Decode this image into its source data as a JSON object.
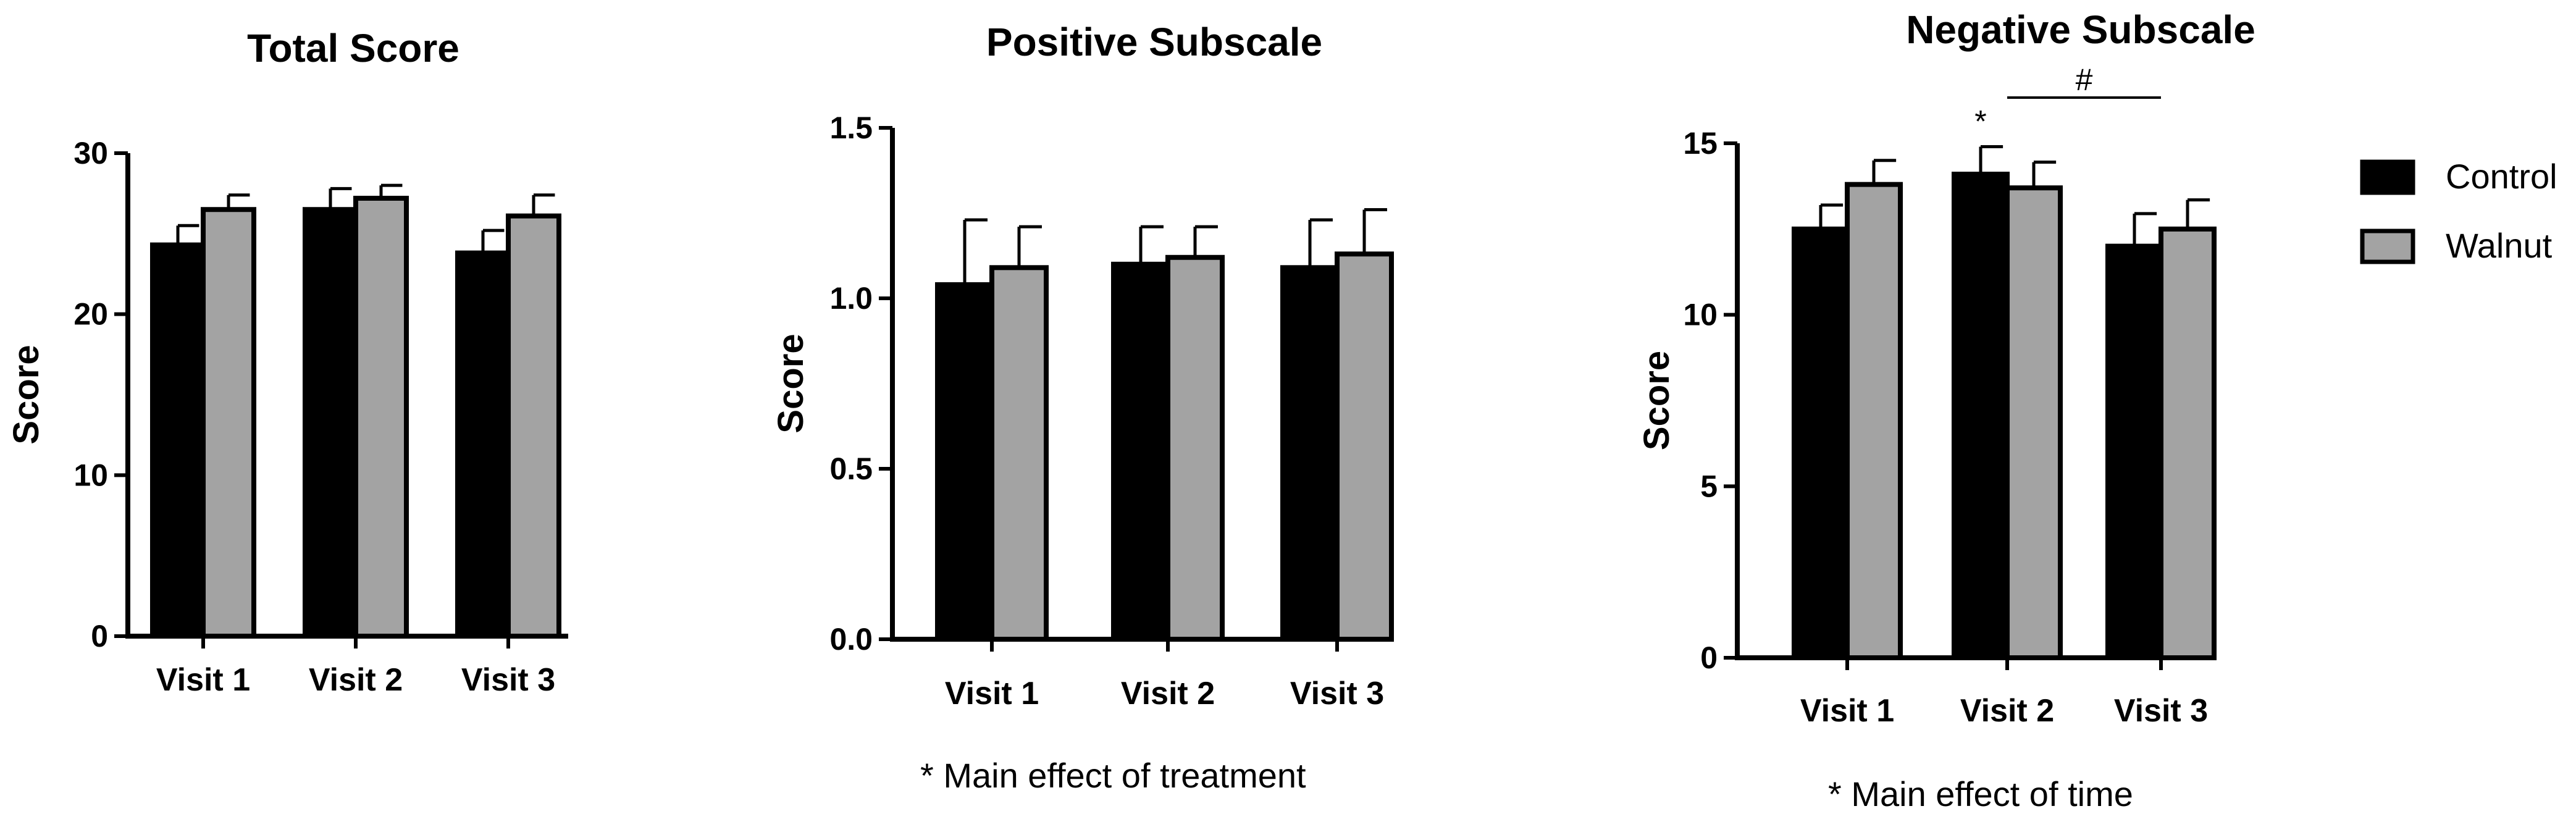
{
  "legend": {
    "entries": [
      {
        "label": "Control",
        "color": "#000000"
      },
      {
        "label": "Walnut",
        "color": "#a3a3a3"
      }
    ]
  },
  "chart_data": [
    {
      "type": "bar",
      "title": "Total Score",
      "ylabel": "Score",
      "xlabel": "",
      "categories": [
        "Visit 1",
        "Visit 2",
        "Visit 3"
      ],
      "ylim": [
        0,
        30
      ],
      "yticks": [
        0,
        10,
        20,
        30
      ],
      "series": [
        {
          "name": "Control",
          "values": [
            24.3,
            26.5,
            23.8
          ],
          "errors": [
            1.2,
            1.3,
            1.4
          ]
        },
        {
          "name": "Walnut",
          "values": [
            26.5,
            27.2,
            26.1
          ],
          "errors": [
            0.9,
            0.8,
            1.3
          ]
        }
      ],
      "annotations": [],
      "note": ""
    },
    {
      "type": "bar",
      "title": "Positive Subscale",
      "ylabel": "Score",
      "xlabel": "",
      "categories": [
        "Visit 1",
        "Visit 2",
        "Visit 3"
      ],
      "ylim": [
        0,
        1.5
      ],
      "yticks": [
        "0.0",
        "0.5",
        "1.0",
        "1.5"
      ],
      "series": [
        {
          "name": "Control",
          "values": [
            1.04,
            1.1,
            1.09
          ],
          "errors": [
            0.19,
            0.11,
            0.14
          ]
        },
        {
          "name": "Walnut",
          "values": [
            1.09,
            1.12,
            1.13
          ],
          "errors": [
            0.12,
            0.09,
            0.13
          ]
        }
      ],
      "annotations": [],
      "note": "*  Main effect of treatment"
    },
    {
      "type": "bar",
      "title": "Negative Subscale",
      "ylabel": "Score",
      "xlabel": "",
      "categories": [
        "Visit 1",
        "Visit 2",
        "Visit 3"
      ],
      "ylim": [
        0,
        15
      ],
      "yticks": [
        0,
        5,
        10,
        15
      ],
      "series": [
        {
          "name": "Control",
          "values": [
            12.5,
            14.1,
            12.0
          ],
          "errors": [
            0.7,
            0.8,
            0.95
          ]
        },
        {
          "name": "Walnut",
          "values": [
            13.8,
            13.7,
            12.5
          ],
          "errors": [
            0.7,
            0.75,
            0.85
          ]
        }
      ],
      "annotations": [
        {
          "text": "*",
          "category": "Visit 2",
          "kind": "star"
        },
        {
          "text": "#",
          "from": "Visit 2",
          "to": "Visit 3",
          "kind": "bracket"
        }
      ],
      "note": "* Main effect of time"
    }
  ]
}
